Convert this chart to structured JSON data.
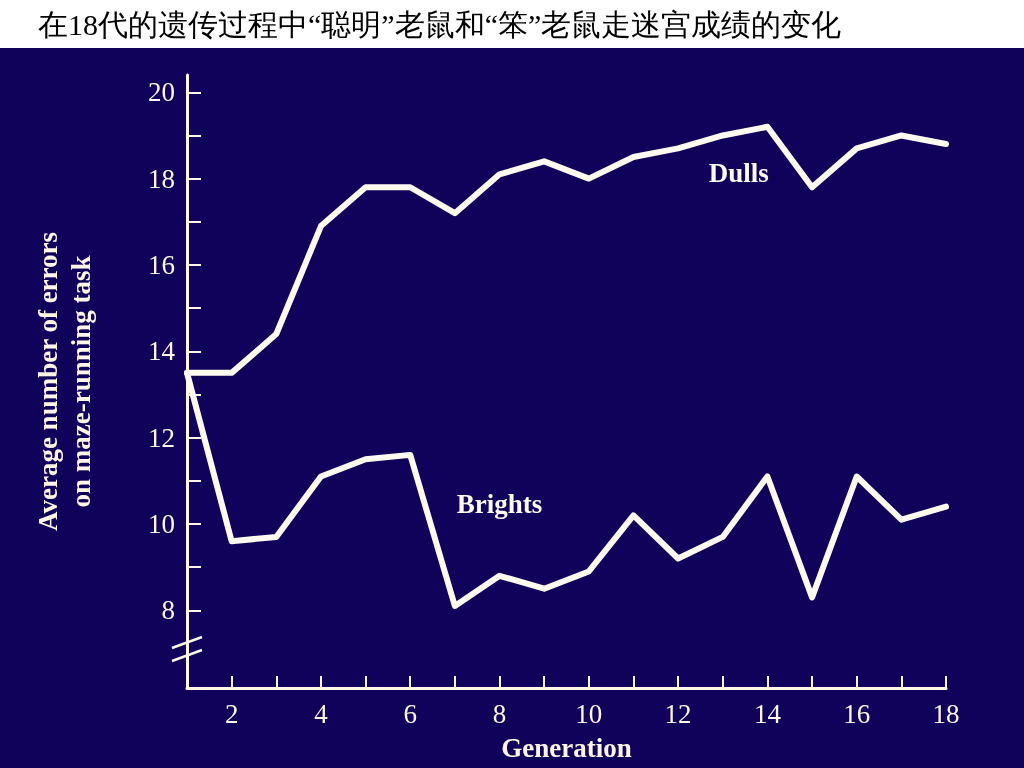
{
  "chart_data": {
    "type": "line",
    "title": "在18代的遗传过程中“聪明”老鼠和“笨”老鼠走迷宫成绩的变化",
    "xlabel": "Generation",
    "ylabel": "Average number of errors\non maze-running task",
    "x": [
      1,
      2,
      3,
      4,
      5,
      6,
      7,
      8,
      9,
      10,
      11,
      12,
      13,
      14,
      15,
      16,
      17,
      18
    ],
    "series": [
      {
        "name": "Dulls",
        "color": "#fffaf0",
        "values": [
          13.5,
          13.5,
          14.4,
          16.9,
          17.8,
          17.8,
          17.2,
          18.1,
          18.4,
          18.0,
          18.5,
          18.7,
          19.0,
          19.2,
          17.8,
          18.7,
          19.0,
          18.8
        ]
      },
      {
        "name": "Brights",
        "color": "#fffaf0",
        "values": [
          13.5,
          9.6,
          9.7,
          11.1,
          11.5,
          11.6,
          8.1,
          8.8,
          8.5,
          8.9,
          10.2,
          9.2,
          9.7,
          11.1,
          8.3,
          11.1,
          10.1,
          10.4
        ]
      }
    ],
    "xlim": [
      1,
      18
    ],
    "xticks": [
      2,
      {
        "value": 3,
        "label": null
      },
      4,
      {
        "value": 5,
        "label": null
      },
      6,
      {
        "value": 7,
        "label": null
      },
      8,
      {
        "value": 9,
        "label": null
      },
      10,
      {
        "value": 11,
        "label": null
      },
      12,
      {
        "value": 13,
        "label": null
      },
      14,
      {
        "value": 15,
        "label": null
      },
      16,
      {
        "value": 17,
        "label": null
      },
      18
    ],
    "ylim": [
      6.2,
      20.4
    ],
    "yticks": [
      8,
      {
        "value": 9,
        "label": null
      },
      10,
      {
        "value": 11,
        "label": null
      },
      12,
      {
        "value": 13,
        "label": null
      },
      14,
      {
        "value": 15,
        "label": null
      },
      16,
      {
        "value": 17,
        "label": null
      },
      18,
      {
        "value": 19,
        "label": null
      },
      20
    ],
    "grid": false,
    "legend": false,
    "line_style": "solid"
  }
}
